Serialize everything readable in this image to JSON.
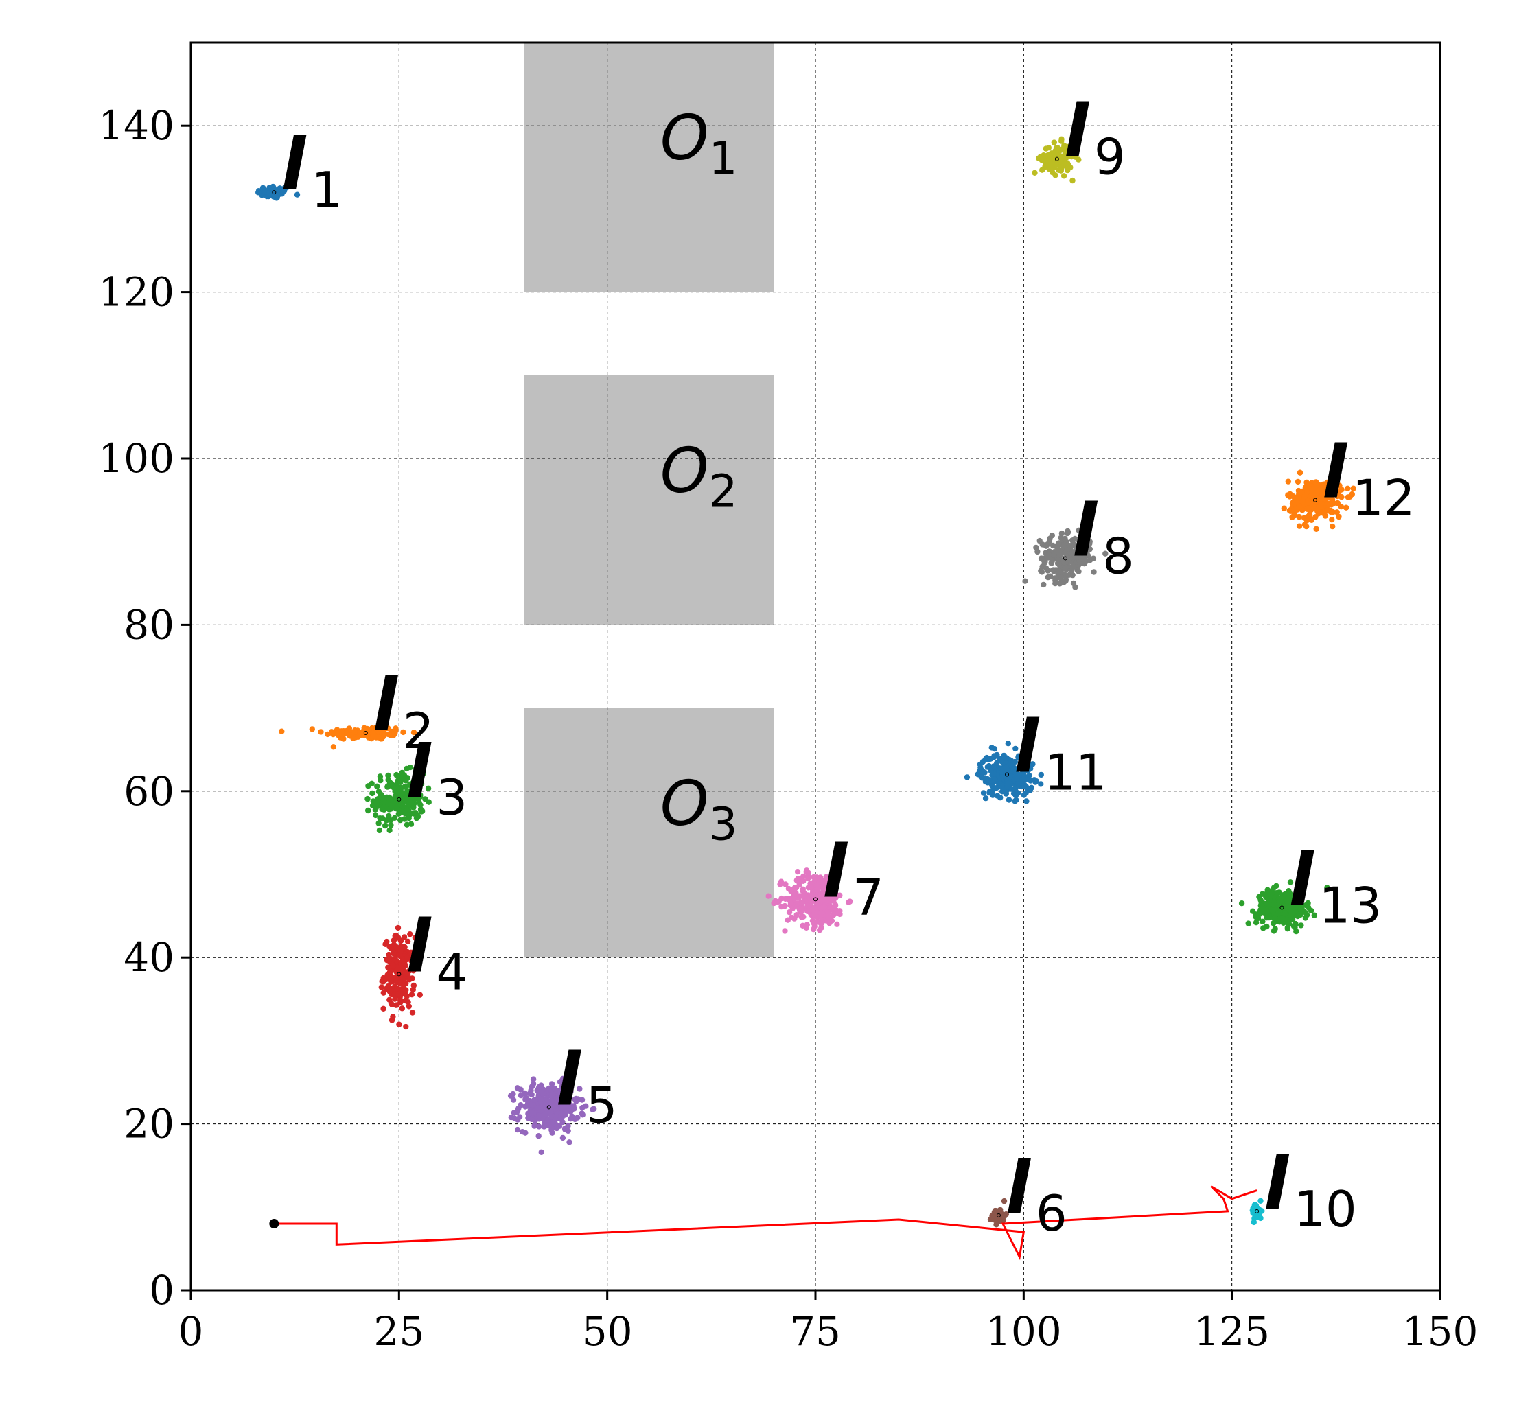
{
  "chart_data": {
    "type": "scatter",
    "title": "",
    "xlabel": "",
    "ylabel": "",
    "xlim": [
      0,
      150
    ],
    "ylim": [
      0,
      150
    ],
    "xticks": [
      0,
      25,
      50,
      75,
      100,
      125,
      150
    ],
    "yticks": [
      0,
      20,
      40,
      60,
      80,
      100,
      120,
      140
    ],
    "grid": true,
    "obstacles": [
      {
        "name": "O",
        "index": "1",
        "x": [
          40,
          70
        ],
        "y": [
          120,
          150
        ],
        "label_x": 61,
        "label_y": 136,
        "color": "#bfbfbf"
      },
      {
        "name": "O",
        "index": "2",
        "x": [
          40,
          70
        ],
        "y": [
          80,
          110
        ],
        "label_x": 61,
        "label_y": 96,
        "color": "#bfbfbf"
      },
      {
        "name": "O",
        "index": "3",
        "x": [
          40,
          70
        ],
        "y": [
          40,
          70
        ],
        "label_x": 61,
        "label_y": 56,
        "color": "#bfbfbf"
      }
    ],
    "landmarks": [
      {
        "label": "1",
        "x": 10,
        "y": 132,
        "sx": 1.0,
        "sy": 0.4,
        "n": 60,
        "color": "#1f77b4"
      },
      {
        "label": "2",
        "x": 21,
        "y": 67,
        "sx": 2.5,
        "sy": 0.4,
        "n": 120,
        "color": "#ff7f0e"
      },
      {
        "label": "3",
        "x": 25,
        "y": 59,
        "sx": 1.5,
        "sy": 1.6,
        "n": 200,
        "color": "#2ca02c"
      },
      {
        "label": "4",
        "x": 25,
        "y": 38,
        "sx": 0.9,
        "sy": 2.2,
        "n": 200,
        "color": "#d62728"
      },
      {
        "label": "5",
        "x": 43,
        "y": 22,
        "sx": 1.8,
        "sy": 1.4,
        "n": 300,
        "color": "#9467bd"
      },
      {
        "label": "6",
        "x": 97,
        "y": 9,
        "sx": 0.4,
        "sy": 0.5,
        "n": 40,
        "color": "#8c564b"
      },
      {
        "label": "7",
        "x": 75,
        "y": 47,
        "sx": 1.8,
        "sy": 1.6,
        "n": 300,
        "color": "#e377c2"
      },
      {
        "label": "8",
        "x": 105,
        "y": 88,
        "sx": 1.5,
        "sy": 1.3,
        "n": 220,
        "color": "#7f7f7f"
      },
      {
        "label": "9",
        "x": 104,
        "y": 136,
        "sx": 0.9,
        "sy": 0.9,
        "n": 120,
        "color": "#bcbd22"
      },
      {
        "label": "10",
        "x": 128,
        "y": 9.5,
        "sx": 0.3,
        "sy": 0.5,
        "n": 40,
        "color": "#17becf"
      },
      {
        "label": "11",
        "x": 98,
        "y": 62,
        "sx": 1.6,
        "sy": 1.3,
        "n": 250,
        "color": "#1f77b4"
      },
      {
        "label": "12",
        "x": 135,
        "y": 95,
        "sx": 1.6,
        "sy": 1.2,
        "n": 250,
        "color": "#ff7f0e"
      },
      {
        "label": "13",
        "x": 131,
        "y": 46,
        "sx": 1.5,
        "sy": 1.1,
        "n": 250,
        "color": "#2ca02c"
      }
    ],
    "landmark_symbol": "l",
    "trajectory": {
      "color": "#ff0000",
      "start_marker": {
        "x": 10,
        "y": 8,
        "color": "#000000"
      },
      "points": [
        [
          10,
          8
        ],
        [
          17.5,
          8
        ],
        [
          17.5,
          5.5
        ],
        [
          85,
          8.5
        ],
        [
          100,
          7
        ],
        [
          99.5,
          4
        ],
        [
          97.5,
          8
        ],
        [
          124.5,
          9.5
        ],
        [
          124,
          11
        ],
        [
          122.5,
          12.5
        ],
        [
          125,
          11
        ],
        [
          128,
          12
        ]
      ]
    }
  }
}
